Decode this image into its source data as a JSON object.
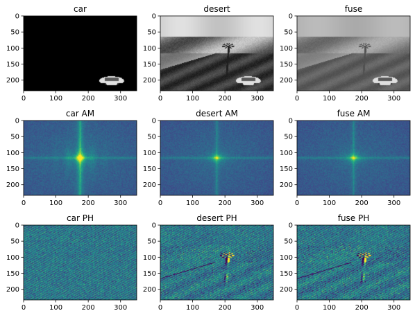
{
  "figure": {
    "panels": [
      {
        "id": "car",
        "title": "car",
        "kind": "car-gray"
      },
      {
        "id": "desert",
        "title": "desert",
        "kind": "desert-gray"
      },
      {
        "id": "fuse",
        "title": "fuse",
        "kind": "fuse-gray"
      },
      {
        "id": "car-am",
        "title": "car AM",
        "kind": "am-car"
      },
      {
        "id": "desert-am",
        "title": "desert AM",
        "kind": "am-desert"
      },
      {
        "id": "fuse-am",
        "title": "fuse AM",
        "kind": "am-fuse"
      },
      {
        "id": "car-ph",
        "title": "car PH",
        "kind": "ph-car"
      },
      {
        "id": "desert-ph",
        "title": "desert PH",
        "kind": "ph-desert"
      },
      {
        "id": "fuse-ph",
        "title": "fuse PH",
        "kind": "ph-fuse"
      }
    ],
    "x_ticks": [
      0,
      100,
      200,
      300
    ],
    "y_ticks": [
      0,
      50,
      100,
      150,
      200
    ],
    "x_range": [
      0,
      350
    ],
    "y_range": [
      0,
      233
    ],
    "colors": {
      "viridis_dark": "#3b528b",
      "viridis_mid": "#21918c",
      "viridis_bright": "#fde725",
      "gray_black": "#000000"
    }
  }
}
